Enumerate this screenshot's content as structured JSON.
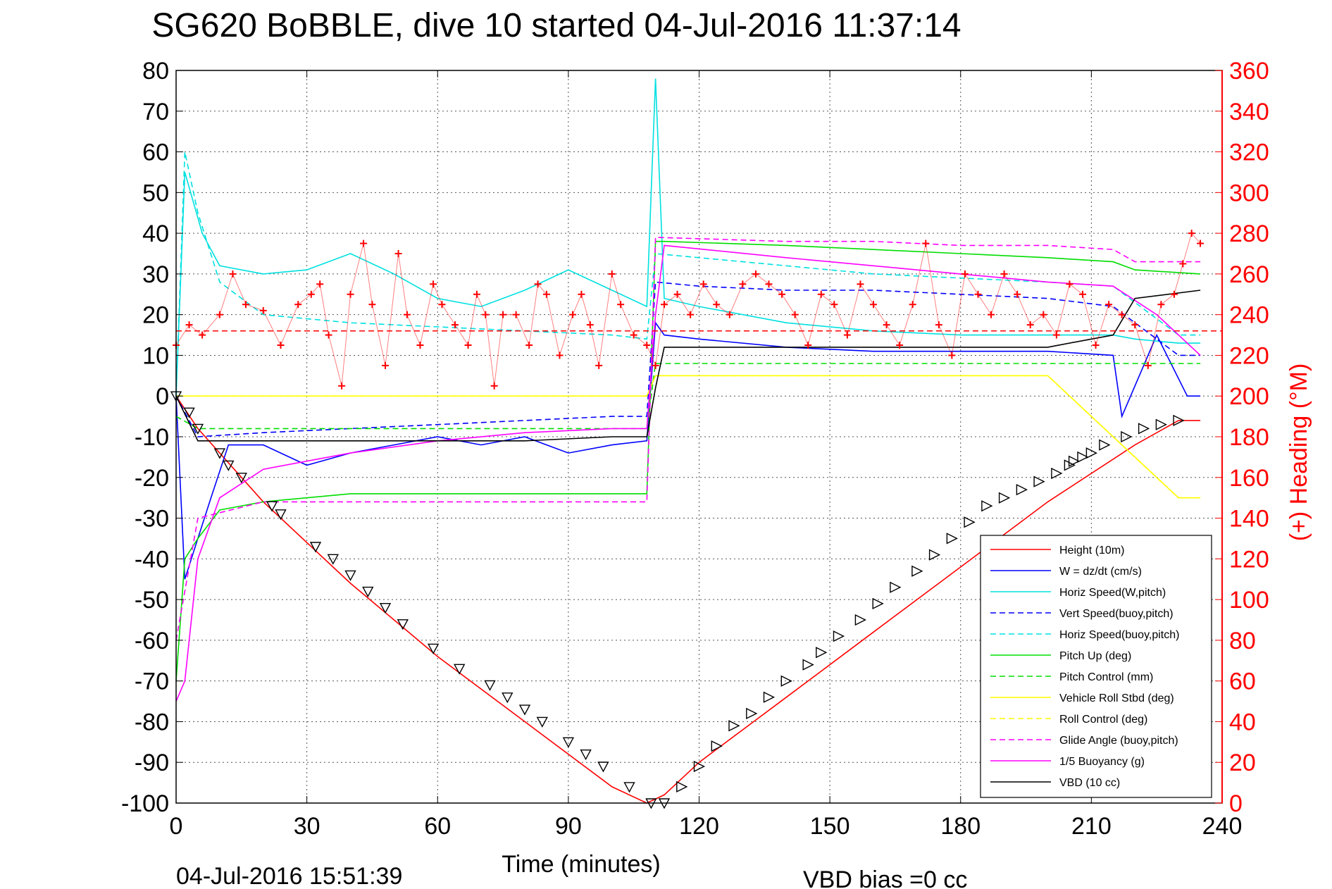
{
  "chart_data": {
    "type": "line",
    "title": "SG620 BoBBLE, dive 10 started 04-Jul-2016 11:37:14",
    "xlabel": "Time (minutes)",
    "ylabel": "",
    "y2label": "(+) Heading (°M)",
    "footer_left": "04-Jul-2016 15:51:39",
    "footer_right": "VBD bias =0 cc",
    "xlim": [
      0,
      240
    ],
    "ylim": [
      -100,
      80
    ],
    "y2lim": [
      0,
      360
    ],
    "x_ticks": [
      0,
      30,
      60,
      90,
      120,
      150,
      180,
      210,
      240
    ],
    "y_ticks": [
      80,
      70,
      60,
      50,
      40,
      30,
      20,
      10,
      0,
      -10,
      -20,
      -30,
      -40,
      -50,
      -60,
      -70,
      -80,
      -90,
      -100
    ],
    "y2_ticks": [
      360,
      340,
      320,
      300,
      280,
      260,
      240,
      220,
      200,
      180,
      160,
      140,
      120,
      100,
      80,
      60,
      40,
      20,
      0
    ],
    "grid": true,
    "legend_position": "bottom-right",
    "series": [
      {
        "name": "Height (10m)",
        "color": "#ff0000",
        "style": "solid",
        "x": [
          0,
          5,
          20,
          40,
          60,
          80,
          100,
          108,
          112,
          120,
          140,
          160,
          180,
          200,
          220,
          230,
          235
        ],
        "y": [
          0,
          -8,
          -26,
          -46,
          -64,
          -80,
          -96,
          -100,
          -98,
          -90,
          -74,
          -58,
          -42,
          -26,
          -12,
          -6,
          -6
        ]
      },
      {
        "name": "W = dz/dt (cm/s)",
        "color": "#0000ff",
        "style": "solid",
        "x": [
          0,
          2,
          5,
          8,
          12,
          20,
          30,
          40,
          50,
          60,
          70,
          80,
          90,
          100,
          108,
          110,
          112,
          120,
          140,
          160,
          180,
          200,
          215,
          217,
          225,
          232,
          235
        ],
        "y": [
          0,
          -45,
          -35,
          -25,
          -12,
          -12,
          -17,
          -14,
          -12,
          -10,
          -12,
          -10,
          -14,
          -12,
          -11,
          18,
          15,
          14,
          12,
          11,
          11,
          11,
          10,
          -5,
          15,
          0,
          0
        ]
      },
      {
        "name": "Horiz Speed(W,pitch)",
        "color": "#00e0e0",
        "style": "solid",
        "x": [
          0,
          2,
          6,
          10,
          20,
          30,
          40,
          50,
          60,
          70,
          80,
          90,
          100,
          108,
          110,
          112,
          120,
          140,
          160,
          180,
          200,
          215,
          220,
          230,
          235
        ],
        "y": [
          0,
          55,
          40,
          32,
          30,
          31,
          35,
          30,
          24,
          22,
          26,
          31,
          26,
          22,
          78,
          24,
          22,
          18,
          16,
          15,
          15,
          15,
          14,
          13,
          13
        ]
      },
      {
        "name": "Vert Speed(buoy,pitch)",
        "color": "#0000ff",
        "style": "dashed",
        "x": [
          0,
          5,
          20,
          40,
          60,
          80,
          100,
          108,
          110,
          120,
          140,
          160,
          180,
          200,
          215,
          230,
          235
        ],
        "y": [
          0,
          -10,
          -9,
          -8,
          -7,
          -6,
          -5,
          -5,
          28,
          27,
          26,
          26,
          25,
          24,
          22,
          10,
          10
        ]
      },
      {
        "name": "Horiz Speed(buoy,pitch)",
        "color": "#00e0e0",
        "style": "dashed",
        "x": [
          0,
          2,
          5,
          10,
          20,
          40,
          60,
          80,
          100,
          108,
          110,
          120,
          140,
          160,
          180,
          200,
          215,
          230,
          235
        ],
        "y": [
          0,
          60,
          45,
          28,
          20,
          18,
          17,
          16,
          15,
          14,
          35,
          34,
          32,
          30,
          29,
          28,
          27,
          15,
          15
        ]
      },
      {
        "name": "Pitch Up (deg)",
        "color": "#00dd00",
        "style": "solid",
        "x": [
          0,
          2,
          5,
          10,
          20,
          40,
          60,
          80,
          100,
          108,
          110,
          112,
          140,
          160,
          180,
          200,
          215,
          220,
          235
        ],
        "y": [
          -70,
          -40,
          -35,
          -28,
          -26,
          -24,
          -24,
          -24,
          -24,
          -24,
          38,
          38,
          37,
          36,
          35,
          34,
          33,
          31,
          30
        ]
      },
      {
        "name": "Pitch Control (mm)",
        "color": "#00dd00",
        "style": "dashed",
        "x": [
          0,
          5,
          20,
          40,
          60,
          80,
          100,
          108,
          110,
          140,
          160,
          180,
          200,
          235
        ],
        "y": [
          -5,
          -8,
          -8,
          -8,
          -8,
          -8,
          -8,
          -8,
          8,
          8,
          8,
          8,
          8,
          8
        ]
      },
      {
        "name": "Vehicle Roll Stbd (deg)",
        "color": "#ffff00",
        "style": "solid",
        "x": [
          0,
          10,
          30,
          60,
          90,
          108,
          110,
          140,
          170,
          200,
          230,
          235
        ],
        "y": [
          0,
          0,
          0,
          0,
          0,
          0,
          5,
          5,
          5,
          5,
          -25,
          -25
        ]
      },
      {
        "name": "Roll Control (deg)",
        "color": "#ffff00",
        "style": "dashed",
        "x": [
          0,
          10,
          30,
          60,
          90,
          108,
          110,
          140,
          170,
          200,
          230,
          235
        ],
        "y": [
          0,
          0,
          0,
          0,
          0,
          0,
          5,
          5,
          5,
          5,
          -25,
          -25
        ]
      },
      {
        "name": "Glide Angle (buoy,pitch)",
        "color": "#ff00ff",
        "style": "dashed",
        "x": [
          0,
          5,
          20,
          40,
          60,
          80,
          100,
          108,
          110,
          140,
          160,
          180,
          200,
          215,
          220,
          235
        ],
        "y": [
          -60,
          -30,
          -26,
          -26,
          -26,
          -26,
          -26,
          -26,
          39,
          38,
          38,
          37,
          37,
          36,
          33,
          33
        ]
      },
      {
        "name": "1/5 Buoyancy (g)",
        "color": "#ff00ff",
        "style": "solid",
        "x": [
          0,
          2,
          5,
          10,
          20,
          40,
          60,
          80,
          100,
          108,
          110,
          112,
          140,
          160,
          180,
          200,
          215,
          225,
          235
        ],
        "y": [
          -75,
          -70,
          -40,
          -25,
          -18,
          -14,
          -11,
          -9,
          -8,
          -8,
          20,
          37,
          34,
          32,
          30,
          28,
          27,
          20,
          10
        ]
      },
      {
        "name": "VBD (10 cc)",
        "color": "#000000",
        "style": "solid",
        "x": [
          0,
          5,
          20,
          40,
          60,
          80,
          100,
          108,
          110,
          112,
          140,
          160,
          180,
          200,
          210,
          215,
          220,
          235
        ],
        "y": [
          0,
          -11,
          -11,
          -11,
          -11,
          -11,
          -10,
          -10,
          2,
          12,
          12,
          12,
          12,
          12,
          14,
          15,
          24,
          26
        ]
      }
    ],
    "heading": {
      "color": "#ff0000",
      "marker": "+",
      "axis": "right",
      "x": [
        0,
        3,
        6,
        10,
        13,
        16,
        20,
        24,
        28,
        31,
        33,
        35,
        38,
        40,
        43,
        45,
        48,
        51,
        53,
        56,
        59,
        61,
        64,
        67,
        69,
        71,
        73,
        75,
        78,
        81,
        83,
        85,
        88,
        91,
        93,
        95,
        97,
        100,
        102,
        105,
        108,
        110,
        112,
        115,
        118,
        121,
        124,
        127,
        130,
        133,
        136,
        139,
        142,
        145,
        148,
        151,
        154,
        157,
        160,
        163,
        166,
        169,
        172,
        175,
        178,
        181,
        184,
        187,
        190,
        193,
        196,
        199,
        202,
        205,
        208,
        211,
        214,
        217,
        220,
        223,
        226,
        229,
        231,
        233,
        235
      ],
      "y": [
        225,
        235,
        230,
        240,
        260,
        245,
        242,
        225,
        245,
        250,
        255,
        230,
        205,
        250,
        275,
        245,
        215,
        270,
        240,
        225,
        255,
        245,
        235,
        225,
        250,
        240,
        205,
        240,
        240,
        225,
        255,
        250,
        220,
        240,
        250,
        235,
        215,
        260,
        245,
        230,
        225,
        215,
        245,
        250,
        240,
        255,
        245,
        240,
        255,
        260,
        255,
        250,
        240,
        225,
        250,
        245,
        230,
        255,
        245,
        235,
        225,
        245,
        275,
        235,
        220,
        260,
        250,
        240,
        260,
        250,
        235,
        240,
        230,
        255,
        250,
        225,
        245,
        240,
        235,
        215,
        245,
        250,
        265,
        280,
        275
      ]
    },
    "heading_ref": {
      "color": "#ff0000",
      "style": "dashed",
      "axis": "right",
      "value": 232
    },
    "depth_markers": {
      "color": "#000000",
      "marker": "triangle",
      "x": [
        0,
        3,
        5,
        10,
        12,
        15,
        22,
        24,
        32,
        36,
        40,
        44,
        48,
        52,
        59,
        65,
        72,
        76,
        80,
        84,
        90,
        94,
        98,
        104,
        109,
        112,
        116,
        120,
        124,
        128,
        132,
        136,
        140,
        145,
        148,
        152,
        157,
        161,
        165,
        170,
        174,
        178,
        182,
        186,
        190,
        194,
        198,
        202,
        205,
        206,
        208,
        210,
        213,
        218,
        222,
        226,
        230
      ],
      "y": [
        0,
        -4,
        -8,
        -14,
        -17,
        -20,
        -27,
        -29,
        -37,
        -40,
        -44,
        -48,
        -52,
        -56,
        -62,
        -67,
        -71,
        -74,
        -77,
        -80,
        -85,
        -88,
        -91,
        -96,
        -100,
        -100,
        -96,
        -91,
        -86,
        -81,
        -78,
        -74,
        -70,
        -66,
        -63,
        -59,
        -55,
        -51,
        -47,
        -43,
        -39,
        -35,
        -31,
        -27,
        -25,
        -23,
        -21,
        -19,
        -17,
        -16,
        -15,
        -14,
        -12,
        -10,
        -8,
        -7,
        -6
      ]
    }
  }
}
